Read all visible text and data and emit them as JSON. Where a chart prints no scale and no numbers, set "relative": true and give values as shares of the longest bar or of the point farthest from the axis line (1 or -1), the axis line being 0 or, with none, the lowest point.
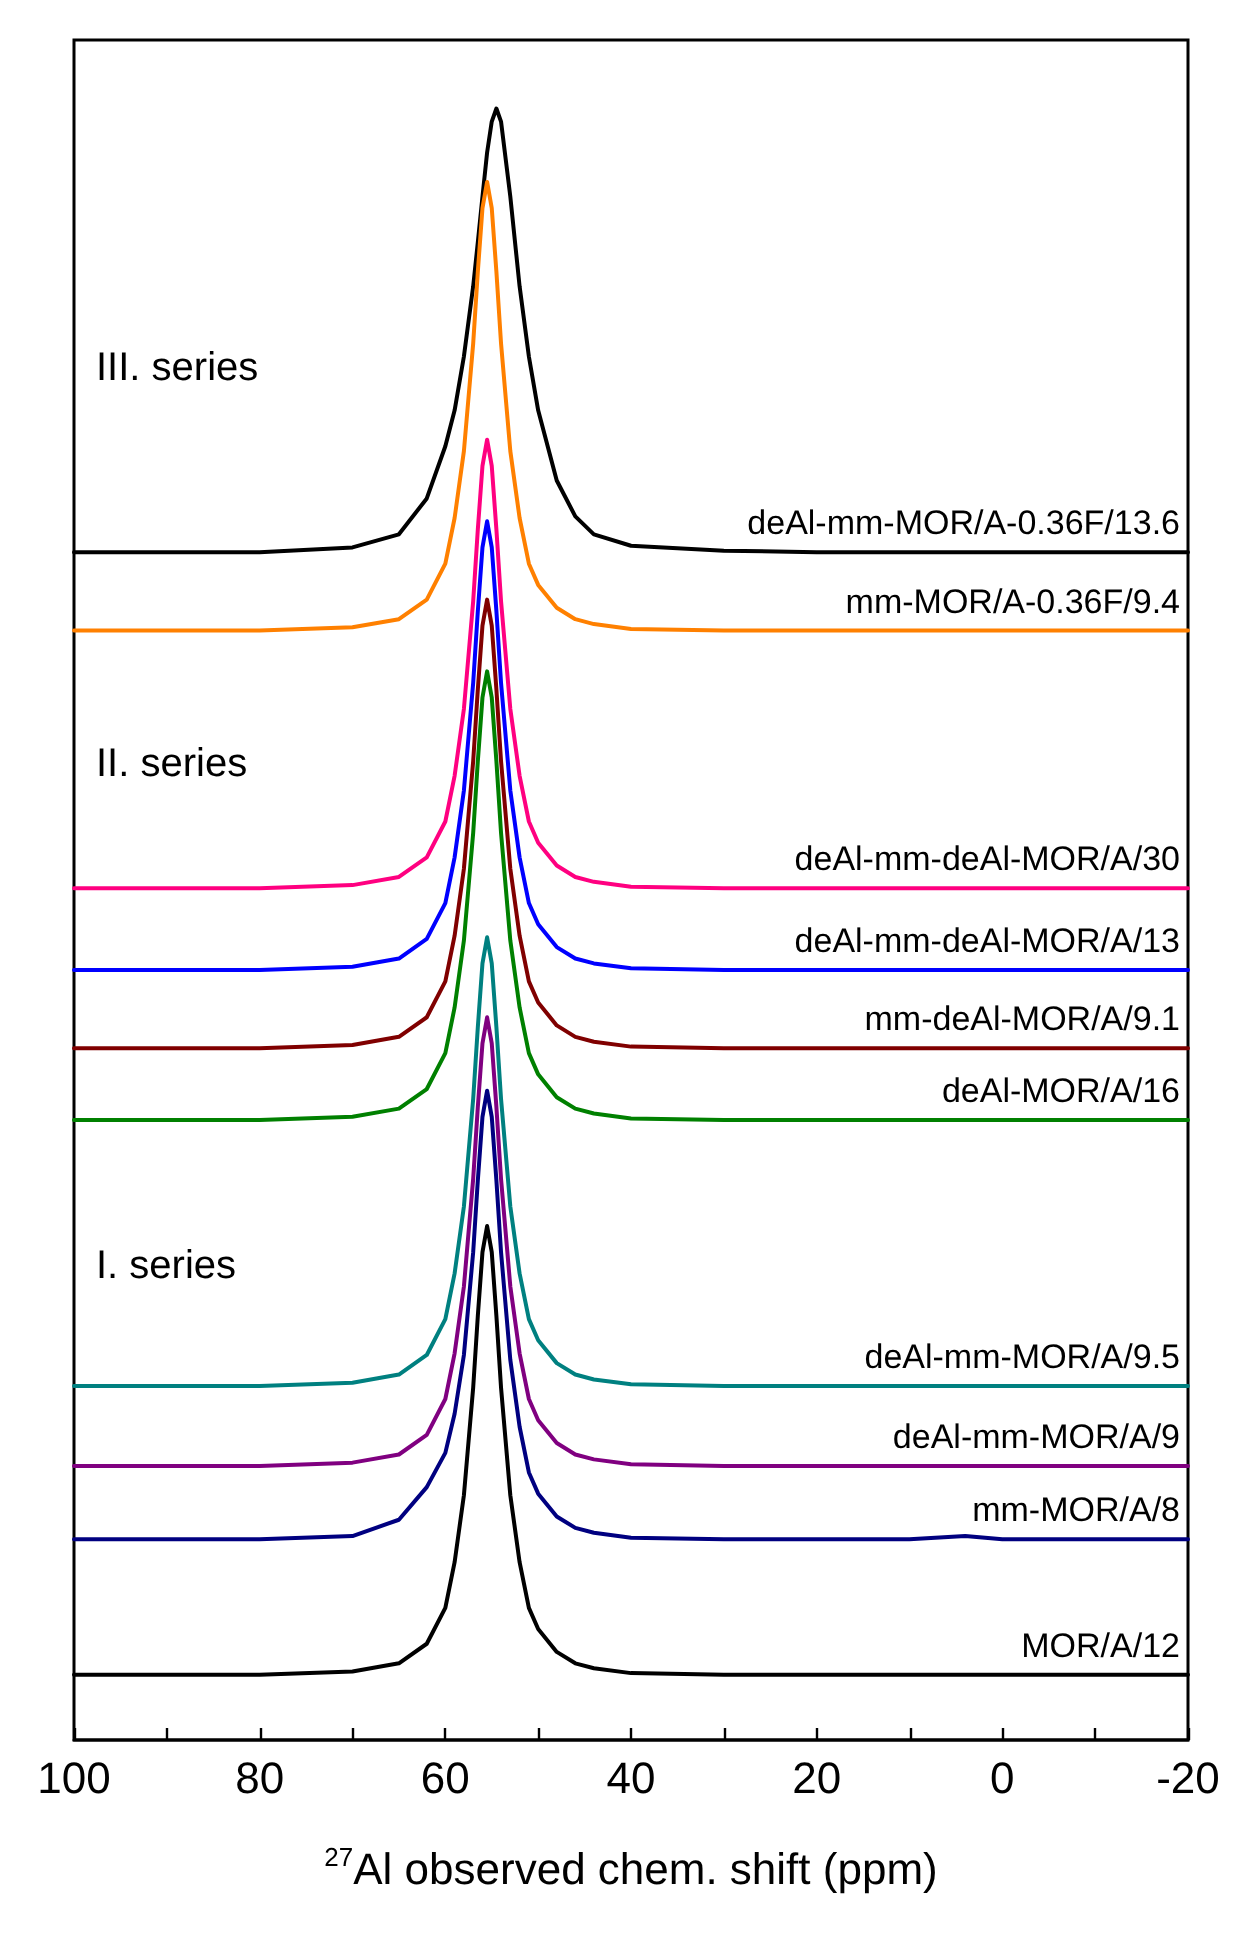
{
  "chart_data": {
    "type": "line",
    "relative": true,
    "xlabel": "$^{27}$Al observed chem. shift (ppm)",
    "xlim": [
      100,
      -20
    ],
    "xticks": [
      100,
      {
        "value": 90,
        "label": null
      },
      80,
      {
        "value": 70,
        "label": null
      },
      60,
      {
        "value": 50,
        "label": null
      },
      40,
      {
        "value": 30,
        "label": null
      },
      20,
      {
        "value": 10,
        "label": null
      },
      0,
      {
        "value": -10,
        "label": null
      },
      -20
    ],
    "annotations": [
      "III. series",
      "II. series",
      "I. series"
    ],
    "x": [
      100,
      80,
      70,
      65,
      62,
      60,
      59,
      58,
      57,
      56.5,
      56,
      55.5,
      55,
      54.5,
      54,
      53,
      52,
      51,
      50,
      48,
      46,
      44,
      40,
      30,
      20,
      10,
      4,
      0,
      -10,
      -20
    ],
    "series": [
      {
        "name": "deAl-mm-MOR/A-0.36F/13.6",
        "color": "#000000",
        "values": [
          0.728,
          0.728,
          0.731,
          0.739,
          0.761,
          0.793,
          0.815,
          0.848,
          0.891,
          0.918,
          0.946,
          0.973,
          0.992,
          1,
          0.992,
          0.946,
          0.891,
          0.848,
          0.815,
          0.772,
          0.75,
          0.739,
          0.732,
          0.729,
          0.728,
          0.728,
          0.728,
          0.728,
          0.728,
          0.728
        ]
      },
      {
        "name": "mm-MOR/A-0.36F/9.4",
        "color": "#ff8000",
        "values": [
          0.68,
          0.68,
          0.682,
          0.687,
          0.699,
          0.721,
          0.749,
          0.79,
          0.856,
          0.9,
          0.939,
          0.955,
          0.939,
          0.9,
          0.856,
          0.79,
          0.749,
          0.721,
          0.708,
          0.694,
          0.687,
          0.684,
          0.681,
          0.68,
          0.68,
          0.68,
          0.68,
          0.68,
          0.68,
          0.68
        ]
      },
      {
        "name": "deAl-mm-deAl-MOR/A/30",
        "color": "#ff0080",
        "values": [
          0.522,
          0.522,
          0.524,
          0.529,
          0.541,
          0.563,
          0.591,
          0.632,
          0.698,
          0.742,
          0.781,
          0.797,
          0.781,
          0.742,
          0.698,
          0.632,
          0.591,
          0.563,
          0.55,
          0.536,
          0.529,
          0.526,
          0.523,
          0.522,
          0.522,
          0.522,
          0.522,
          0.522,
          0.522,
          0.522
        ]
      },
      {
        "name": "deAl-mm-deAl-MOR/A/13",
        "color": "#0000ff",
        "values": [
          0.472,
          0.472,
          0.474,
          0.479,
          0.491,
          0.513,
          0.541,
          0.582,
          0.648,
          0.692,
          0.731,
          0.747,
          0.731,
          0.692,
          0.648,
          0.582,
          0.541,
          0.513,
          0.5,
          0.486,
          0.479,
          0.476,
          0.473,
          0.472,
          0.472,
          0.472,
          0.472,
          0.472,
          0.472,
          0.472
        ]
      },
      {
        "name": "mm-deAl-MOR/A/9.1",
        "color": "#800000",
        "values": [
          0.424,
          0.424,
          0.426,
          0.431,
          0.443,
          0.465,
          0.493,
          0.534,
          0.6,
          0.644,
          0.683,
          0.699,
          0.683,
          0.644,
          0.6,
          0.534,
          0.493,
          0.465,
          0.452,
          0.438,
          0.431,
          0.428,
          0.425,
          0.424,
          0.424,
          0.424,
          0.424,
          0.424,
          0.424,
          0.424
        ]
      },
      {
        "name": "deAl-MOR/A/16",
        "color": "#008000",
        "values": [
          0.38,
          0.38,
          0.382,
          0.387,
          0.399,
          0.421,
          0.449,
          0.49,
          0.556,
          0.6,
          0.639,
          0.655,
          0.639,
          0.6,
          0.556,
          0.49,
          0.449,
          0.421,
          0.408,
          0.394,
          0.387,
          0.384,
          0.381,
          0.38,
          0.38,
          0.38,
          0.38,
          0.38,
          0.38,
          0.38
        ]
      },
      {
        "name": "deAl-mm-MOR/A/9.5",
        "color": "#008080",
        "values": [
          0.217,
          0.217,
          0.219,
          0.224,
          0.236,
          0.258,
          0.286,
          0.327,
          0.393,
          0.437,
          0.476,
          0.492,
          0.476,
          0.437,
          0.393,
          0.327,
          0.286,
          0.258,
          0.245,
          0.231,
          0.224,
          0.221,
          0.218,
          0.217,
          0.217,
          0.217,
          0.217,
          0.217,
          0.217,
          0.217
        ]
      },
      {
        "name": "deAl-mm-MOR/A/9",
        "color": "#800080",
        "values": [
          0.168,
          0.168,
          0.17,
          0.175,
          0.187,
          0.209,
          0.237,
          0.278,
          0.344,
          0.388,
          0.427,
          0.443,
          0.427,
          0.388,
          0.344,
          0.278,
          0.237,
          0.209,
          0.196,
          0.182,
          0.175,
          0.172,
          0.169,
          0.168,
          0.168,
          0.168,
          0.168,
          0.168,
          0.168,
          0.168
        ]
      },
      {
        "name": "mm-MOR/A/8",
        "color": "#000080",
        "values": [
          0.123,
          0.123,
          0.125,
          0.135,
          0.155,
          0.176,
          0.2,
          0.236,
          0.299,
          0.343,
          0.382,
          0.398,
          0.382,
          0.343,
          0.299,
          0.233,
          0.192,
          0.164,
          0.151,
          0.137,
          0.13,
          0.127,
          0.124,
          0.123,
          0.123,
          0.123,
          0.125,
          0.123,
          0.123,
          0.123
        ]
      },
      {
        "name": "MOR/A/12",
        "color": "#000000",
        "values": [
          0.04,
          0.04,
          0.042,
          0.047,
          0.059,
          0.081,
          0.109,
          0.15,
          0.216,
          0.26,
          0.299,
          0.315,
          0.299,
          0.26,
          0.216,
          0.15,
          0.109,
          0.081,
          0.068,
          0.054,
          0.047,
          0.044,
          0.041,
          0.04,
          0.04,
          0.04,
          0.04,
          0.04,
          0.04,
          0.04
        ]
      }
    ]
  }
}
